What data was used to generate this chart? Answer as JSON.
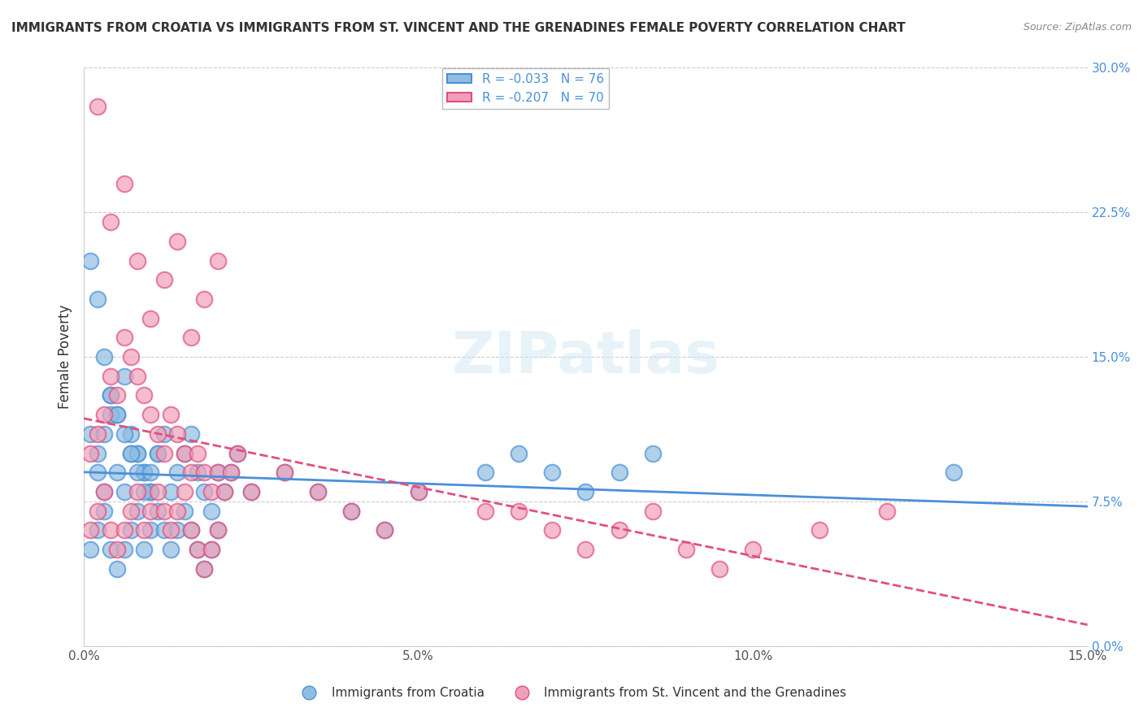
{
  "title": "IMMIGRANTS FROM CROATIA VS IMMIGRANTS FROM ST. VINCENT AND THE GRENADINES FEMALE POVERTY CORRELATION CHART",
  "source": "Source: ZipAtlas.com",
  "xlabel_blue": "Immigrants from Croatia",
  "xlabel_pink": "Immigrants from St. Vincent and the Grenadines",
  "ylabel": "Female Poverty",
  "xlim": [
    0.0,
    0.15
  ],
  "ylim": [
    0.0,
    0.3
  ],
  "xticks": [
    0.0,
    0.05,
    0.1,
    0.15
  ],
  "xtick_labels": [
    "0.0%",
    "5.0%",
    "10.0%",
    "15.0%"
  ],
  "yticks": [
    0.0,
    0.075,
    0.15,
    0.225,
    0.3
  ],
  "ytick_labels": [
    "0.0%",
    "7.5%",
    "15.0%",
    "22.5%",
    "30.0%"
  ],
  "legend_blue_r": "-0.033",
  "legend_blue_n": "76",
  "legend_pink_r": "-0.207",
  "legend_pink_n": "70",
  "blue_color": "#90bde0",
  "pink_color": "#f0a0b8",
  "line_blue_color": "#4a90d9",
  "line_pink_color": "#e05080",
  "watermark": "ZIPatlas",
  "blue_scatter_x": [
    0.005,
    0.008,
    0.003,
    0.002,
    0.001,
    0.004,
    0.006,
    0.007,
    0.009,
    0.01,
    0.002,
    0.003,
    0.004,
    0.005,
    0.006,
    0.007,
    0.008,
    0.009,
    0.01,
    0.011,
    0.001,
    0.002,
    0.003,
    0.004,
    0.005,
    0.006,
    0.007,
    0.008,
    0.009,
    0.01,
    0.011,
    0.012,
    0.013,
    0.014,
    0.015,
    0.016,
    0.017,
    0.018,
    0.019,
    0.02,
    0.021,
    0.022,
    0.023,
    0.025,
    0.03,
    0.035,
    0.04,
    0.045,
    0.05,
    0.06,
    0.001,
    0.002,
    0.003,
    0.004,
    0.005,
    0.006,
    0.007,
    0.008,
    0.009,
    0.01,
    0.011,
    0.012,
    0.013,
    0.014,
    0.015,
    0.016,
    0.017,
    0.018,
    0.019,
    0.02,
    0.065,
    0.07,
    0.075,
    0.08,
    0.085,
    0.13
  ],
  "blue_scatter_y": [
    0.12,
    0.1,
    0.08,
    0.09,
    0.11,
    0.13,
    0.14,
    0.1,
    0.09,
    0.08,
    0.1,
    0.11,
    0.12,
    0.09,
    0.08,
    0.11,
    0.1,
    0.09,
    0.08,
    0.1,
    0.2,
    0.18,
    0.15,
    0.13,
    0.12,
    0.11,
    0.1,
    0.09,
    0.08,
    0.09,
    0.1,
    0.11,
    0.08,
    0.09,
    0.1,
    0.11,
    0.09,
    0.08,
    0.07,
    0.09,
    0.08,
    0.09,
    0.1,
    0.08,
    0.09,
    0.08,
    0.07,
    0.06,
    0.08,
    0.09,
    0.05,
    0.06,
    0.07,
    0.05,
    0.04,
    0.05,
    0.06,
    0.07,
    0.05,
    0.06,
    0.07,
    0.06,
    0.05,
    0.06,
    0.07,
    0.06,
    0.05,
    0.04,
    0.05,
    0.06,
    0.1,
    0.09,
    0.08,
    0.09,
    0.1,
    0.09
  ],
  "pink_scatter_x": [
    0.002,
    0.004,
    0.006,
    0.008,
    0.01,
    0.012,
    0.014,
    0.016,
    0.018,
    0.02,
    0.001,
    0.002,
    0.003,
    0.004,
    0.005,
    0.006,
    0.007,
    0.008,
    0.009,
    0.01,
    0.011,
    0.012,
    0.013,
    0.014,
    0.015,
    0.016,
    0.017,
    0.018,
    0.019,
    0.02,
    0.021,
    0.022,
    0.023,
    0.025,
    0.03,
    0.035,
    0.04,
    0.045,
    0.05,
    0.06,
    0.001,
    0.002,
    0.003,
    0.004,
    0.005,
    0.006,
    0.007,
    0.008,
    0.009,
    0.01,
    0.011,
    0.012,
    0.013,
    0.014,
    0.015,
    0.016,
    0.017,
    0.018,
    0.019,
    0.02,
    0.065,
    0.07,
    0.075,
    0.08,
    0.085,
    0.09,
    0.095,
    0.1,
    0.11,
    0.12
  ],
  "pink_scatter_y": [
    0.28,
    0.22,
    0.24,
    0.2,
    0.17,
    0.19,
    0.21,
    0.16,
    0.18,
    0.2,
    0.1,
    0.11,
    0.12,
    0.14,
    0.13,
    0.16,
    0.15,
    0.14,
    0.13,
    0.12,
    0.11,
    0.1,
    0.12,
    0.11,
    0.1,
    0.09,
    0.1,
    0.09,
    0.08,
    0.09,
    0.08,
    0.09,
    0.1,
    0.08,
    0.09,
    0.08,
    0.07,
    0.06,
    0.08,
    0.07,
    0.06,
    0.07,
    0.08,
    0.06,
    0.05,
    0.06,
    0.07,
    0.08,
    0.06,
    0.07,
    0.08,
    0.07,
    0.06,
    0.07,
    0.08,
    0.06,
    0.05,
    0.04,
    0.05,
    0.06,
    0.07,
    0.06,
    0.05,
    0.06,
    0.07,
    0.05,
    0.04,
    0.05,
    0.06,
    0.07
  ]
}
